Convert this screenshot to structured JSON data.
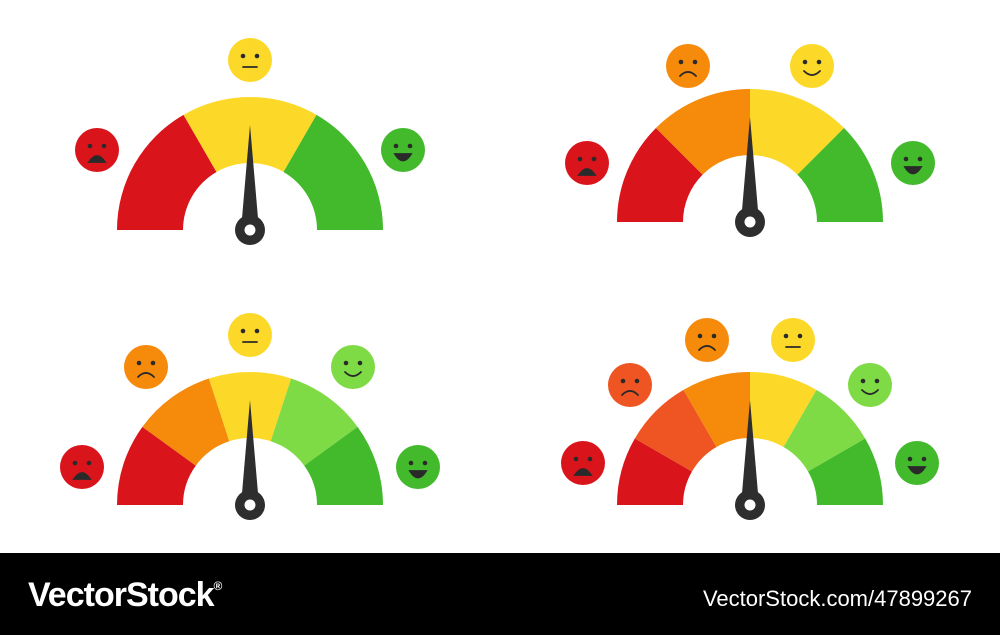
{
  "footer": {
    "brand": "VectorStock",
    "registered": "®",
    "url": "VectorStock.com/47899267"
  }
}
